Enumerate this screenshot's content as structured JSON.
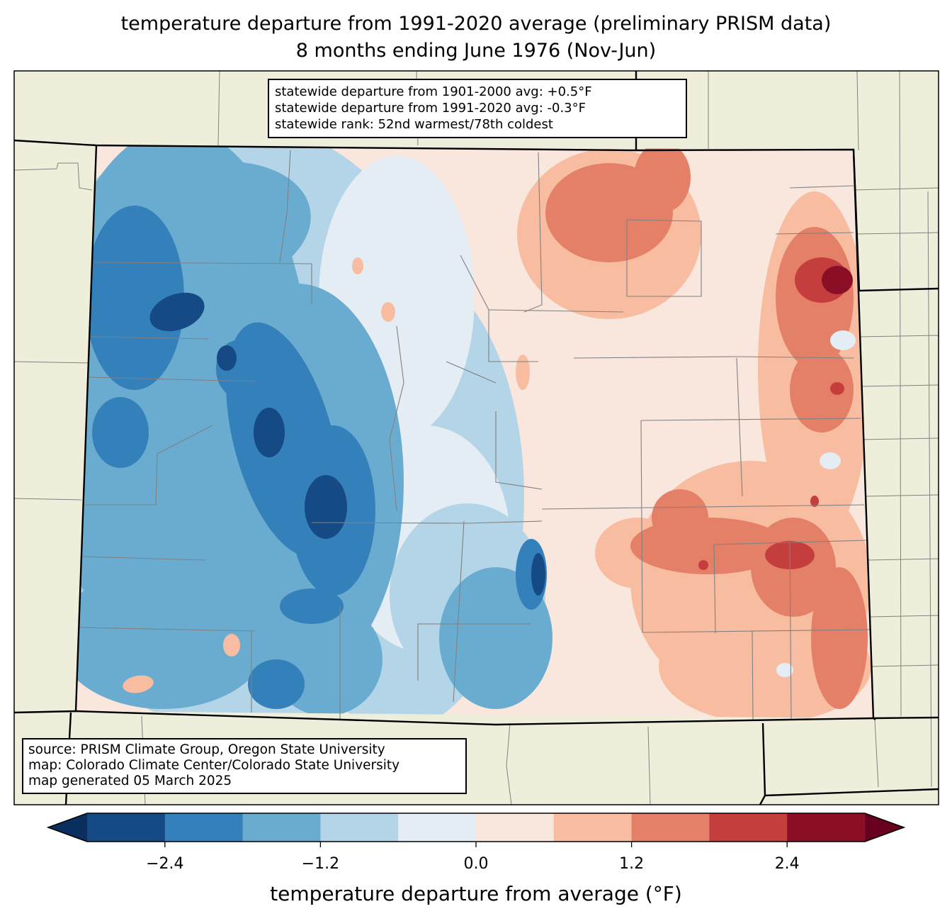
{
  "title": {
    "line1": "temperature departure from 1991-2020 average (preliminary PRISM data)",
    "line2": "8 months ending June 1976 (Nov-Jun)"
  },
  "stats_box": {
    "lines": [
      "statewide departure from 1901-2000 avg: +0.5°F",
      "statewide departure from 1991-2020 avg: -0.3°F",
      "statewide rank: 52nd warmest/78th coldest"
    ]
  },
  "source_box": {
    "lines": [
      "source: PRISM Climate Group, Oregon State University",
      "map: Colorado Climate Center/Colorado State University",
      "map generated 05 March 2025"
    ]
  },
  "colors": {
    "land": "#efeedb",
    "state_border": "#000000",
    "county_border": "#808080"
  },
  "chart_data": {
    "type": "heatmap",
    "title": "temperature departure from 1991-2020 average (preliminary PRISM data) — 8 months ending June 1976 (Nov-Jun)",
    "region": "Colorado",
    "variable": "temperature departure from average (°F)",
    "colorbar": {
      "label": "temperature departure from average (°F)",
      "levels": [
        -3.0,
        -2.4,
        -1.8,
        -1.2,
        -0.6,
        0.0,
        0.6,
        1.2,
        1.8,
        2.4,
        3.0
      ],
      "colors": [
        "#154a85",
        "#3480ba",
        "#6aacd0",
        "#b3d5e7",
        "#e5edf4",
        "#f9e7de",
        "#f8bda0",
        "#e48068",
        "#c53e3e",
        "#8a0e25"
      ],
      "extend_min_color": "#0a2f5e",
      "extend_max_color": "#67001f",
      "tick_values": [
        -2.4,
        -1.2,
        0.0,
        1.2,
        2.4
      ],
      "tick_labels": [
        "−2.4",
        "−1.2",
        "0.0",
        "1.2",
        "2.4"
      ],
      "orientation": "horizontal",
      "extend": "both"
    },
    "spatial_summary": {
      "west": "below average, mostly -0.6 to -2.4 °F, with cores below -2.4 °F in central mountains and northwest",
      "east": "above average, mostly 0 to +1.8 °F, with cores above +2.4 °F near the northeast border and +1.8 to +2.4 °F in the southeast",
      "statewide_departure_1991_2020_F": -0.3,
      "statewide_departure_1901_2000_F": 0.5,
      "rank_warmest": 52,
      "rank_coldest": 78
    }
  }
}
